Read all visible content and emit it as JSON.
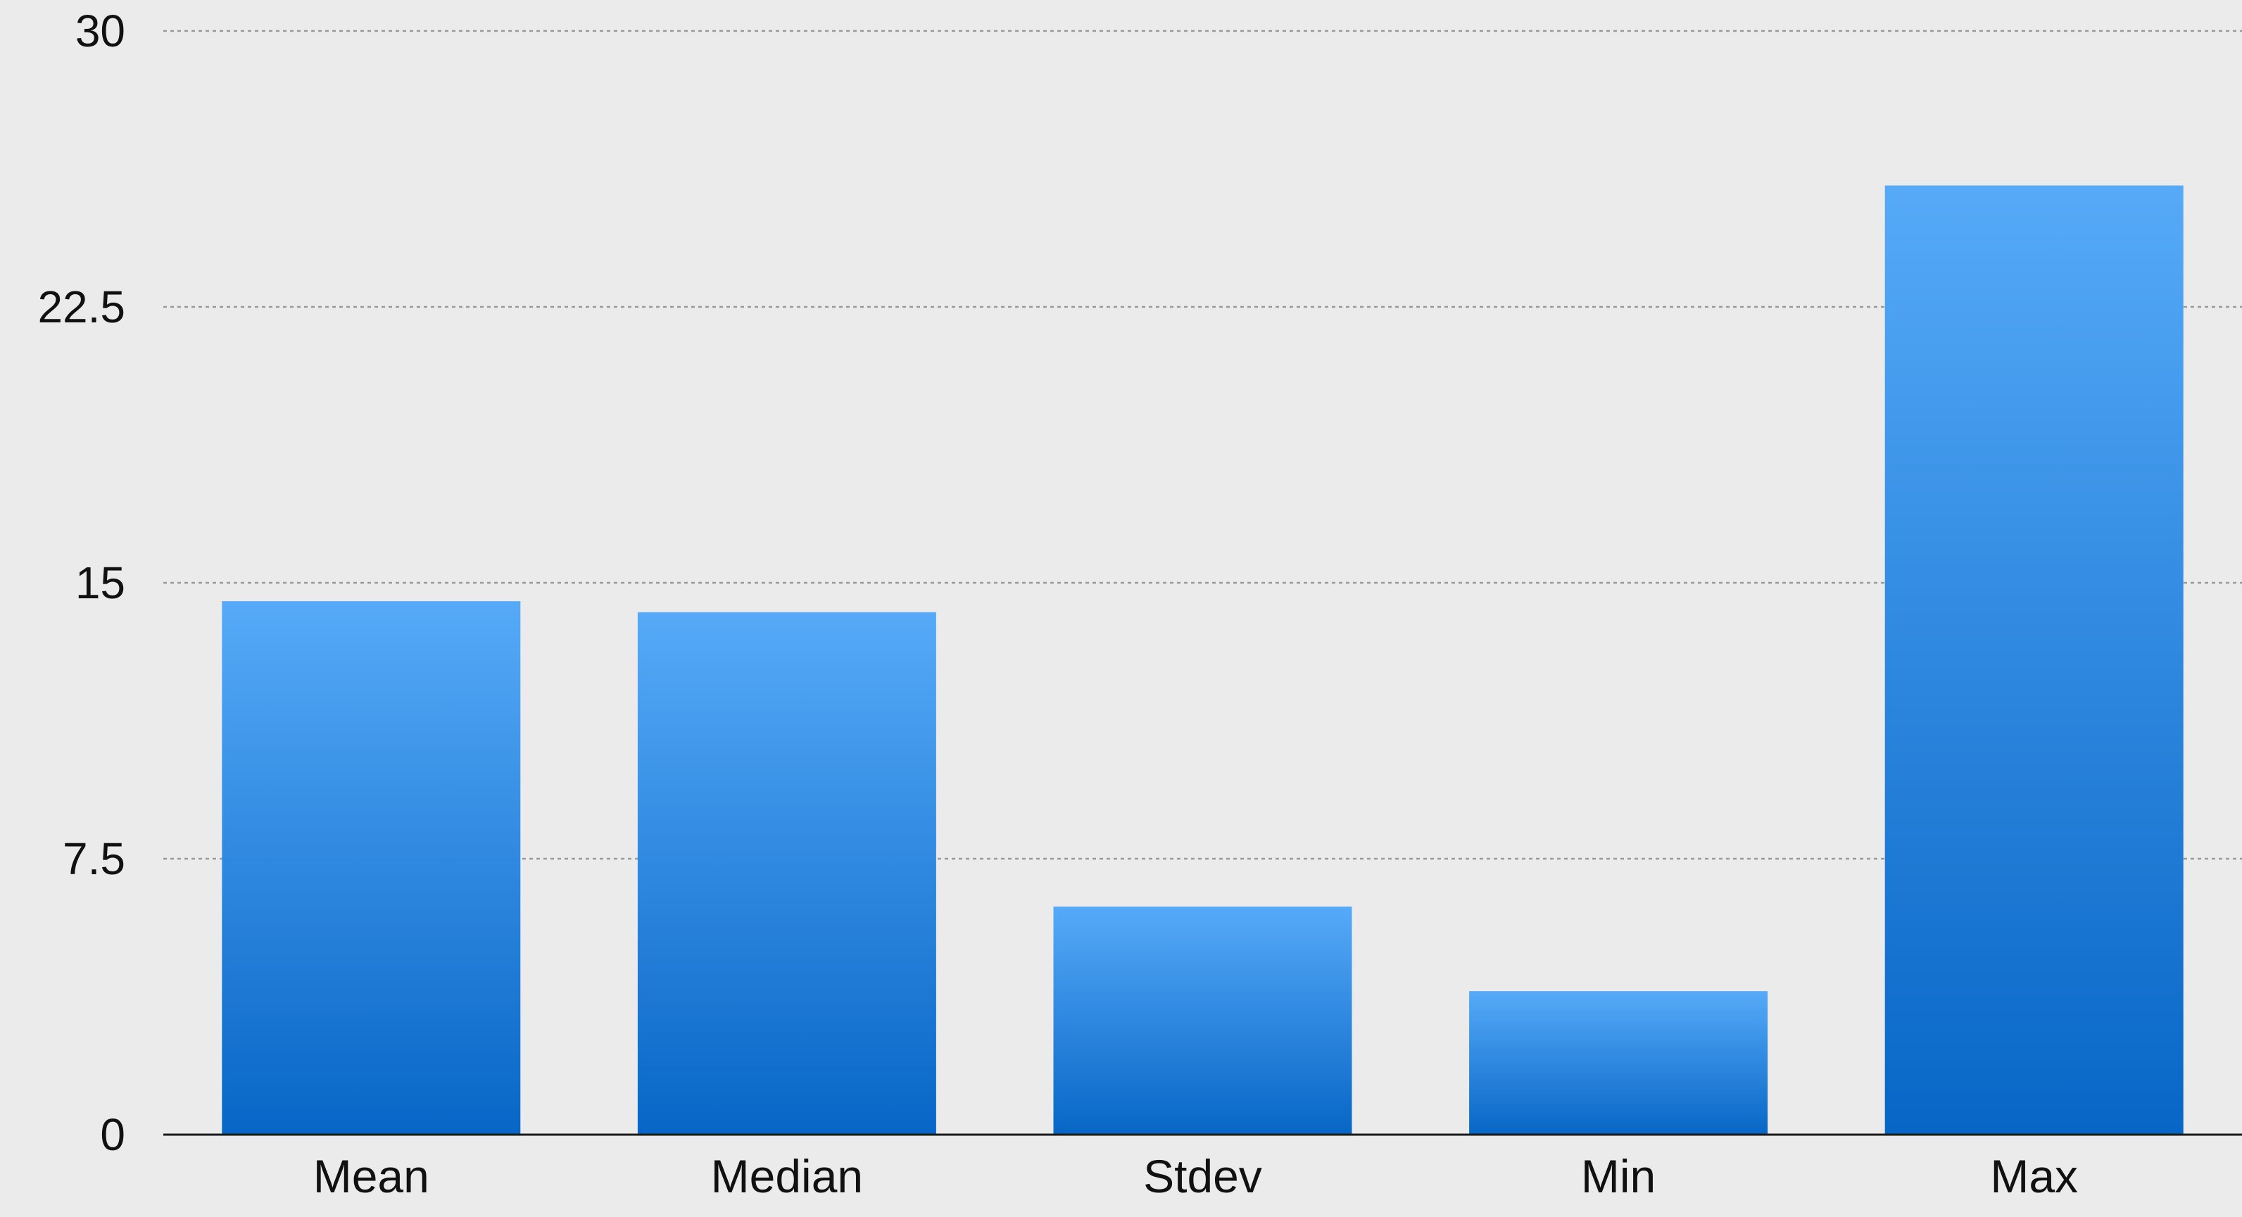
{
  "chart_data": {
    "type": "bar",
    "categories": [
      "Mean",
      "Median",
      "Stdev",
      "Min",
      "Max"
    ],
    "values": [
      14.5,
      14.2,
      6.2,
      3.9,
      25.8
    ],
    "ylim": [
      0,
      30
    ],
    "yticks": [
      0,
      7.5,
      15,
      22.5,
      30
    ],
    "ytick_labels": [
      "0",
      "7.5",
      "15",
      "22.5",
      "30"
    ],
    "grid": true,
    "colors": {
      "background": "#ebebeb",
      "bar_top": "#56aaf8",
      "bar_bottom": "#0766c6",
      "gridline": "#9a9a9a",
      "baseline": "#1a1a1a"
    }
  }
}
